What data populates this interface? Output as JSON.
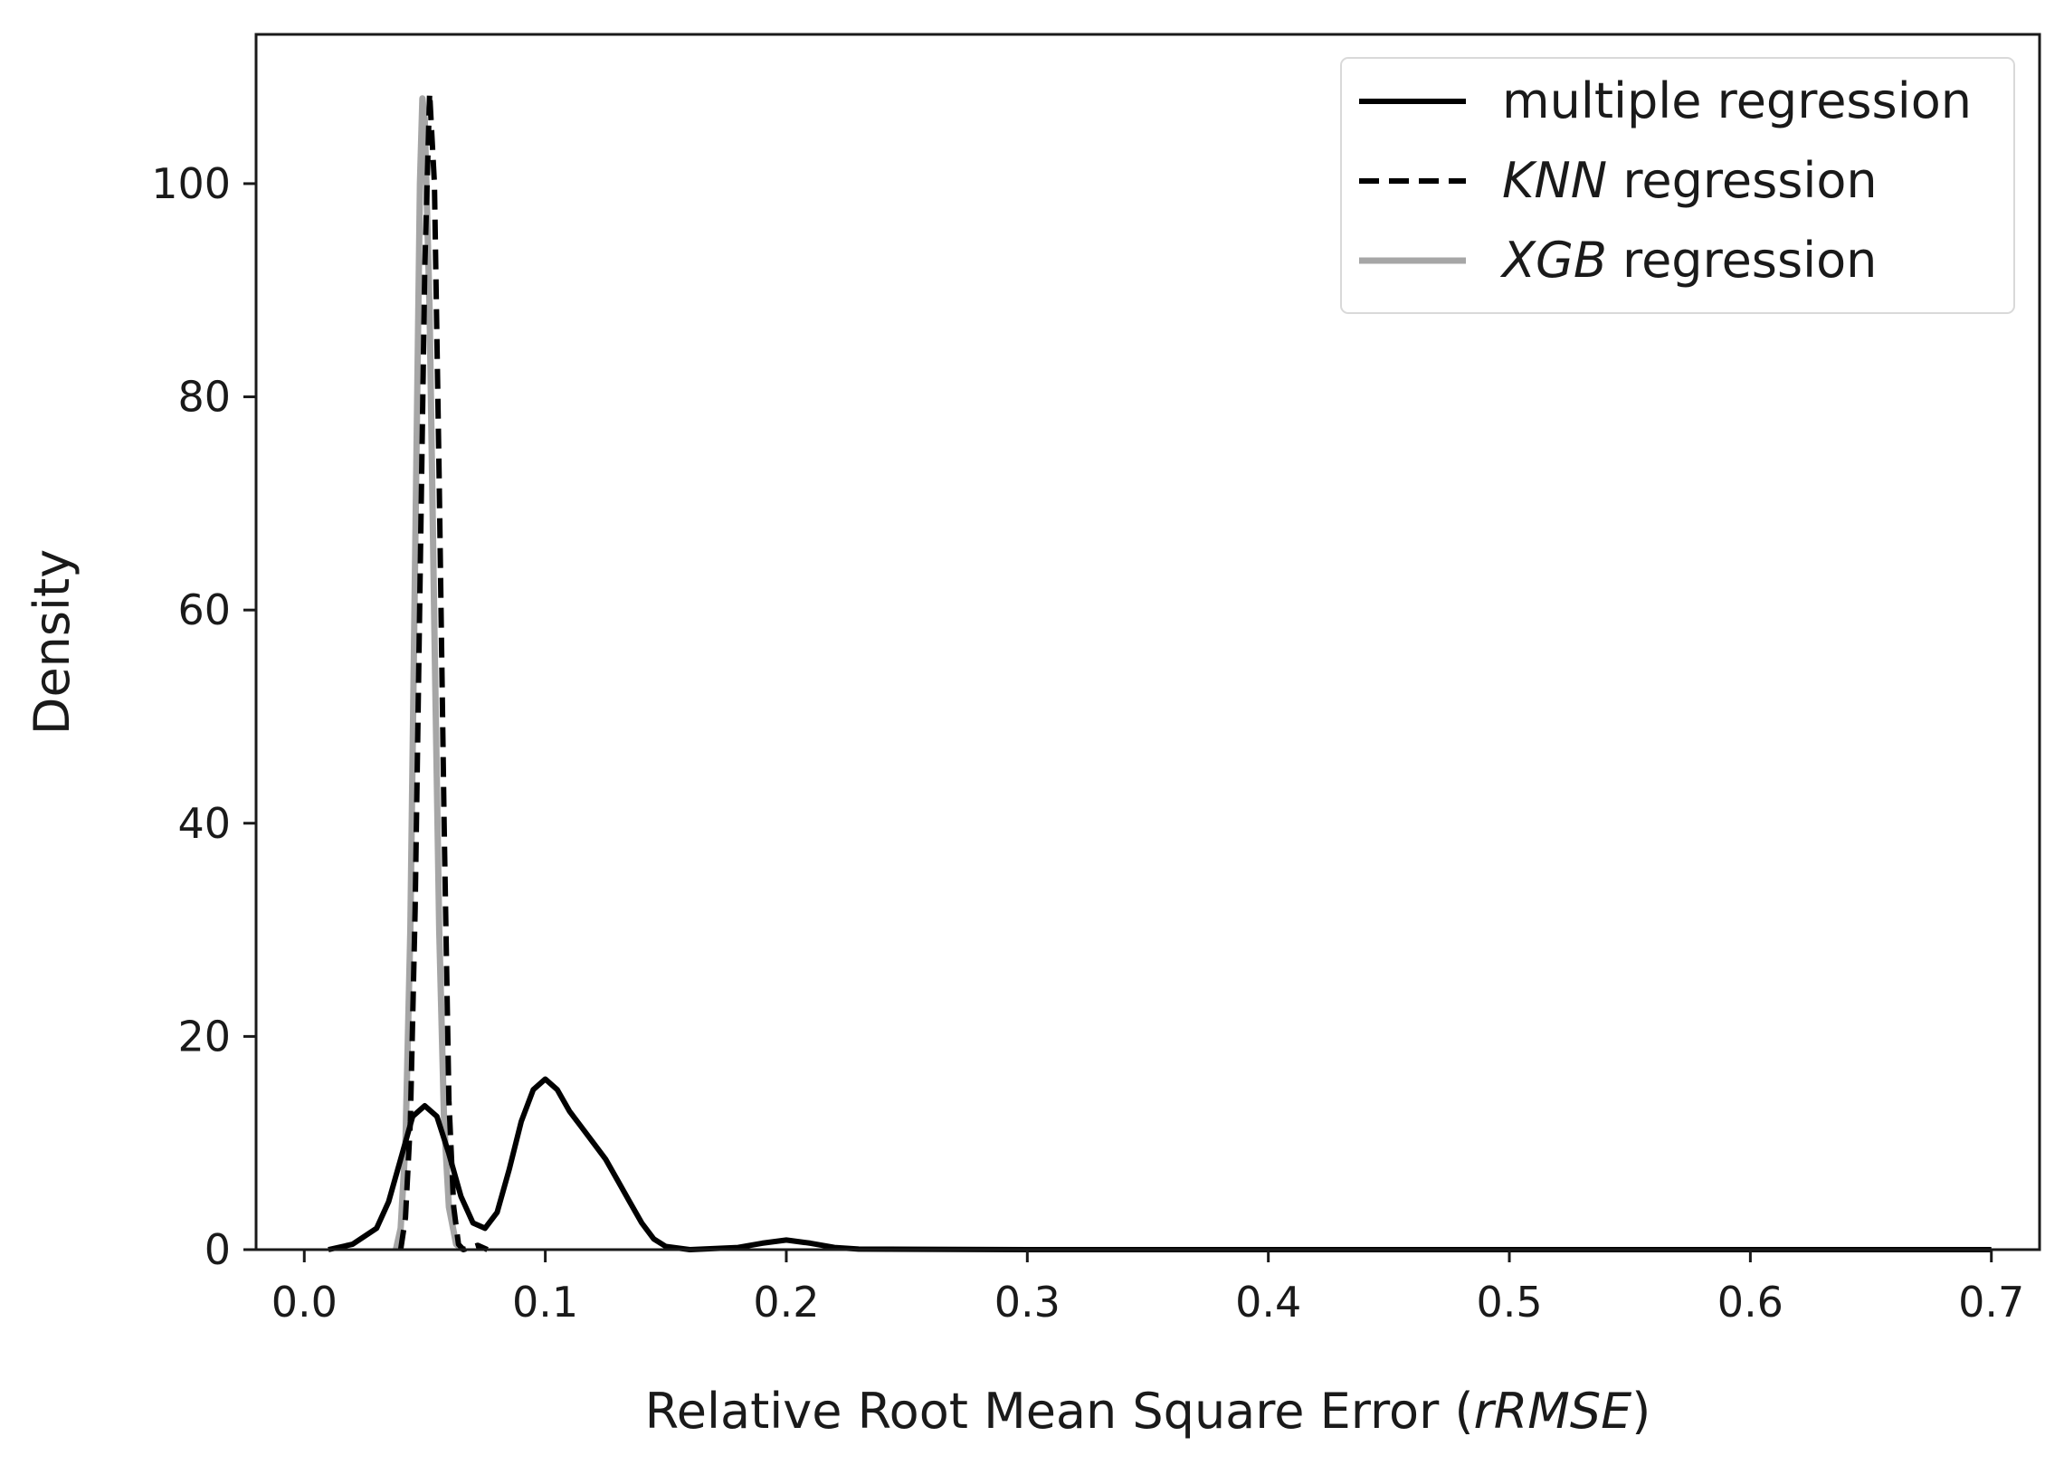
{
  "chart_data": {
    "type": "line",
    "xlabel": "Relative Root Mean Square Error (rRMSE)",
    "xlabel_parts": {
      "prefix": "Relative Root Mean Square Error (",
      "italic": "rRMSE",
      "suffix": ")"
    },
    "ylabel": "Density",
    "xlim": [
      -0.02,
      0.72
    ],
    "ylim": [
      0,
      114
    ],
    "xticks": [
      {
        "value": 0.0,
        "label": "0.0"
      },
      {
        "value": 0.1,
        "label": "0.1"
      },
      {
        "value": 0.2,
        "label": "0.2"
      },
      {
        "value": 0.3,
        "label": "0.3"
      },
      {
        "value": 0.4,
        "label": "0.4"
      },
      {
        "value": 0.5,
        "label": "0.5"
      },
      {
        "value": 0.6,
        "label": "0.6"
      },
      {
        "value": 0.7,
        "label": "0.7"
      }
    ],
    "yticks": [
      {
        "value": 0,
        "label": "0"
      },
      {
        "value": 20,
        "label": "20"
      },
      {
        "value": 40,
        "label": "40"
      },
      {
        "value": 60,
        "label": "60"
      },
      {
        "value": 80,
        "label": "80"
      },
      {
        "value": 100,
        "label": "100"
      }
    ],
    "grid": false,
    "legend_position": "top-right",
    "series": [
      {
        "name": "multiple regression",
        "legend": {
          "italic": "",
          "rest": "multiple regression"
        },
        "style": "solid",
        "color": "#000000",
        "points": [
          [
            0.01,
            0.0
          ],
          [
            0.02,
            0.5
          ],
          [
            0.03,
            2.0
          ],
          [
            0.035,
            4.5
          ],
          [
            0.04,
            8.5
          ],
          [
            0.045,
            12.5
          ],
          [
            0.05,
            13.5
          ],
          [
            0.055,
            12.5
          ],
          [
            0.06,
            9.0
          ],
          [
            0.065,
            5.0
          ],
          [
            0.07,
            2.5
          ],
          [
            0.075,
            2.0
          ],
          [
            0.08,
            3.5
          ],
          [
            0.085,
            7.5
          ],
          [
            0.09,
            12.0
          ],
          [
            0.095,
            15.0
          ],
          [
            0.1,
            16.0
          ],
          [
            0.105,
            15.0
          ],
          [
            0.11,
            13.0
          ],
          [
            0.115,
            11.5
          ],
          [
            0.12,
            10.0
          ],
          [
            0.125,
            8.5
          ],
          [
            0.13,
            6.5
          ],
          [
            0.135,
            4.5
          ],
          [
            0.14,
            2.5
          ],
          [
            0.145,
            1.0
          ],
          [
            0.15,
            0.3
          ],
          [
            0.16,
            0.0
          ],
          [
            0.18,
            0.2
          ],
          [
            0.19,
            0.6
          ],
          [
            0.2,
            0.9
          ],
          [
            0.21,
            0.6
          ],
          [
            0.22,
            0.2
          ],
          [
            0.23,
            0.05
          ],
          [
            0.3,
            0.0
          ],
          [
            0.5,
            0.0
          ],
          [
            0.7,
            0.0
          ]
        ]
      },
      {
        "name": "KNN regression",
        "legend": {
          "italic": "KNN",
          "rest": " regression"
        },
        "style": "dashed",
        "color": "#000000",
        "points": [
          [
            0.04,
            0.0
          ],
          [
            0.042,
            3.0
          ],
          [
            0.044,
            12.0
          ],
          [
            0.046,
            32.0
          ],
          [
            0.048,
            62.0
          ],
          [
            0.05,
            92.0
          ],
          [
            0.052,
            108.5
          ],
          [
            0.054,
            100.0
          ],
          [
            0.056,
            72.0
          ],
          [
            0.058,
            40.0
          ],
          [
            0.06,
            14.0
          ],
          [
            0.062,
            4.0
          ],
          [
            0.064,
            0.5
          ],
          [
            0.066,
            0.0
          ],
          [
            0.072,
            0.4
          ],
          [
            0.076,
            0.0
          ]
        ]
      },
      {
        "name": "XGB regression",
        "legend": {
          "italic": "XGB",
          "rest": " regression"
        },
        "style": "solid",
        "color": "#a6a6a6",
        "points": [
          [
            0.038,
            0.0
          ],
          [
            0.04,
            2.0
          ],
          [
            0.042,
            10.0
          ],
          [
            0.044,
            30.0
          ],
          [
            0.046,
            65.0
          ],
          [
            0.048,
            100.0
          ],
          [
            0.049,
            108.0
          ],
          [
            0.05,
            106.0
          ],
          [
            0.052,
            88.0
          ],
          [
            0.054,
            58.0
          ],
          [
            0.056,
            30.0
          ],
          [
            0.058,
            12.0
          ],
          [
            0.06,
            4.0
          ],
          [
            0.063,
            0.5
          ],
          [
            0.066,
            0.0
          ]
        ]
      }
    ]
  }
}
